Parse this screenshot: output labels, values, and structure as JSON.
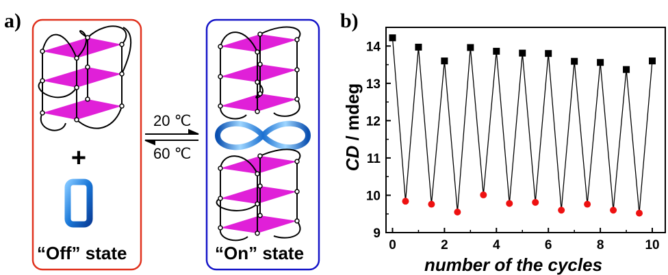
{
  "panel_a": {
    "label": "a)",
    "off_label": "“Off” state",
    "on_label": "“On” state",
    "plus": "+",
    "temp_forward": "20 ℃",
    "temp_back": "60 ℃",
    "colors": {
      "off_frame": "#e0321e",
      "on_frame": "#1515c8",
      "quartet": "#e020d8",
      "ring": "#1a78d8"
    }
  },
  "panel_b": {
    "label": "b)"
  },
  "chart_data": {
    "type": "scatter",
    "xlabel": "number of the cycles",
    "ylabel_italic": "CD",
    "ylabel_rest": " / mdeg",
    "xlim": [
      -0.25,
      10.5
    ],
    "ylim": [
      9,
      14.5
    ],
    "xticks": [
      0,
      2,
      4,
      6,
      8,
      10
    ],
    "yticks": [
      9,
      10,
      11,
      12,
      13,
      14
    ],
    "grid": false,
    "line_color": "#000000",
    "series": [
      {
        "color": "#000000",
        "marker": "square",
        "x": [
          0,
          1,
          2,
          3,
          4,
          5,
          6,
          7,
          8,
          9,
          10
        ],
        "y": [
          14.22,
          13.97,
          13.6,
          13.96,
          13.86,
          13.81,
          13.8,
          13.59,
          13.56,
          13.37,
          13.6
        ]
      },
      {
        "color": "#ee1111",
        "marker": "circle",
        "x": [
          0.5,
          1.5,
          2.5,
          3.5,
          4.5,
          5.5,
          6.5,
          7.5,
          8.5,
          9.5
        ],
        "y": [
          9.84,
          9.76,
          9.55,
          10.01,
          9.78,
          9.81,
          9.6,
          9.76,
          9.6,
          9.52
        ]
      }
    ]
  }
}
